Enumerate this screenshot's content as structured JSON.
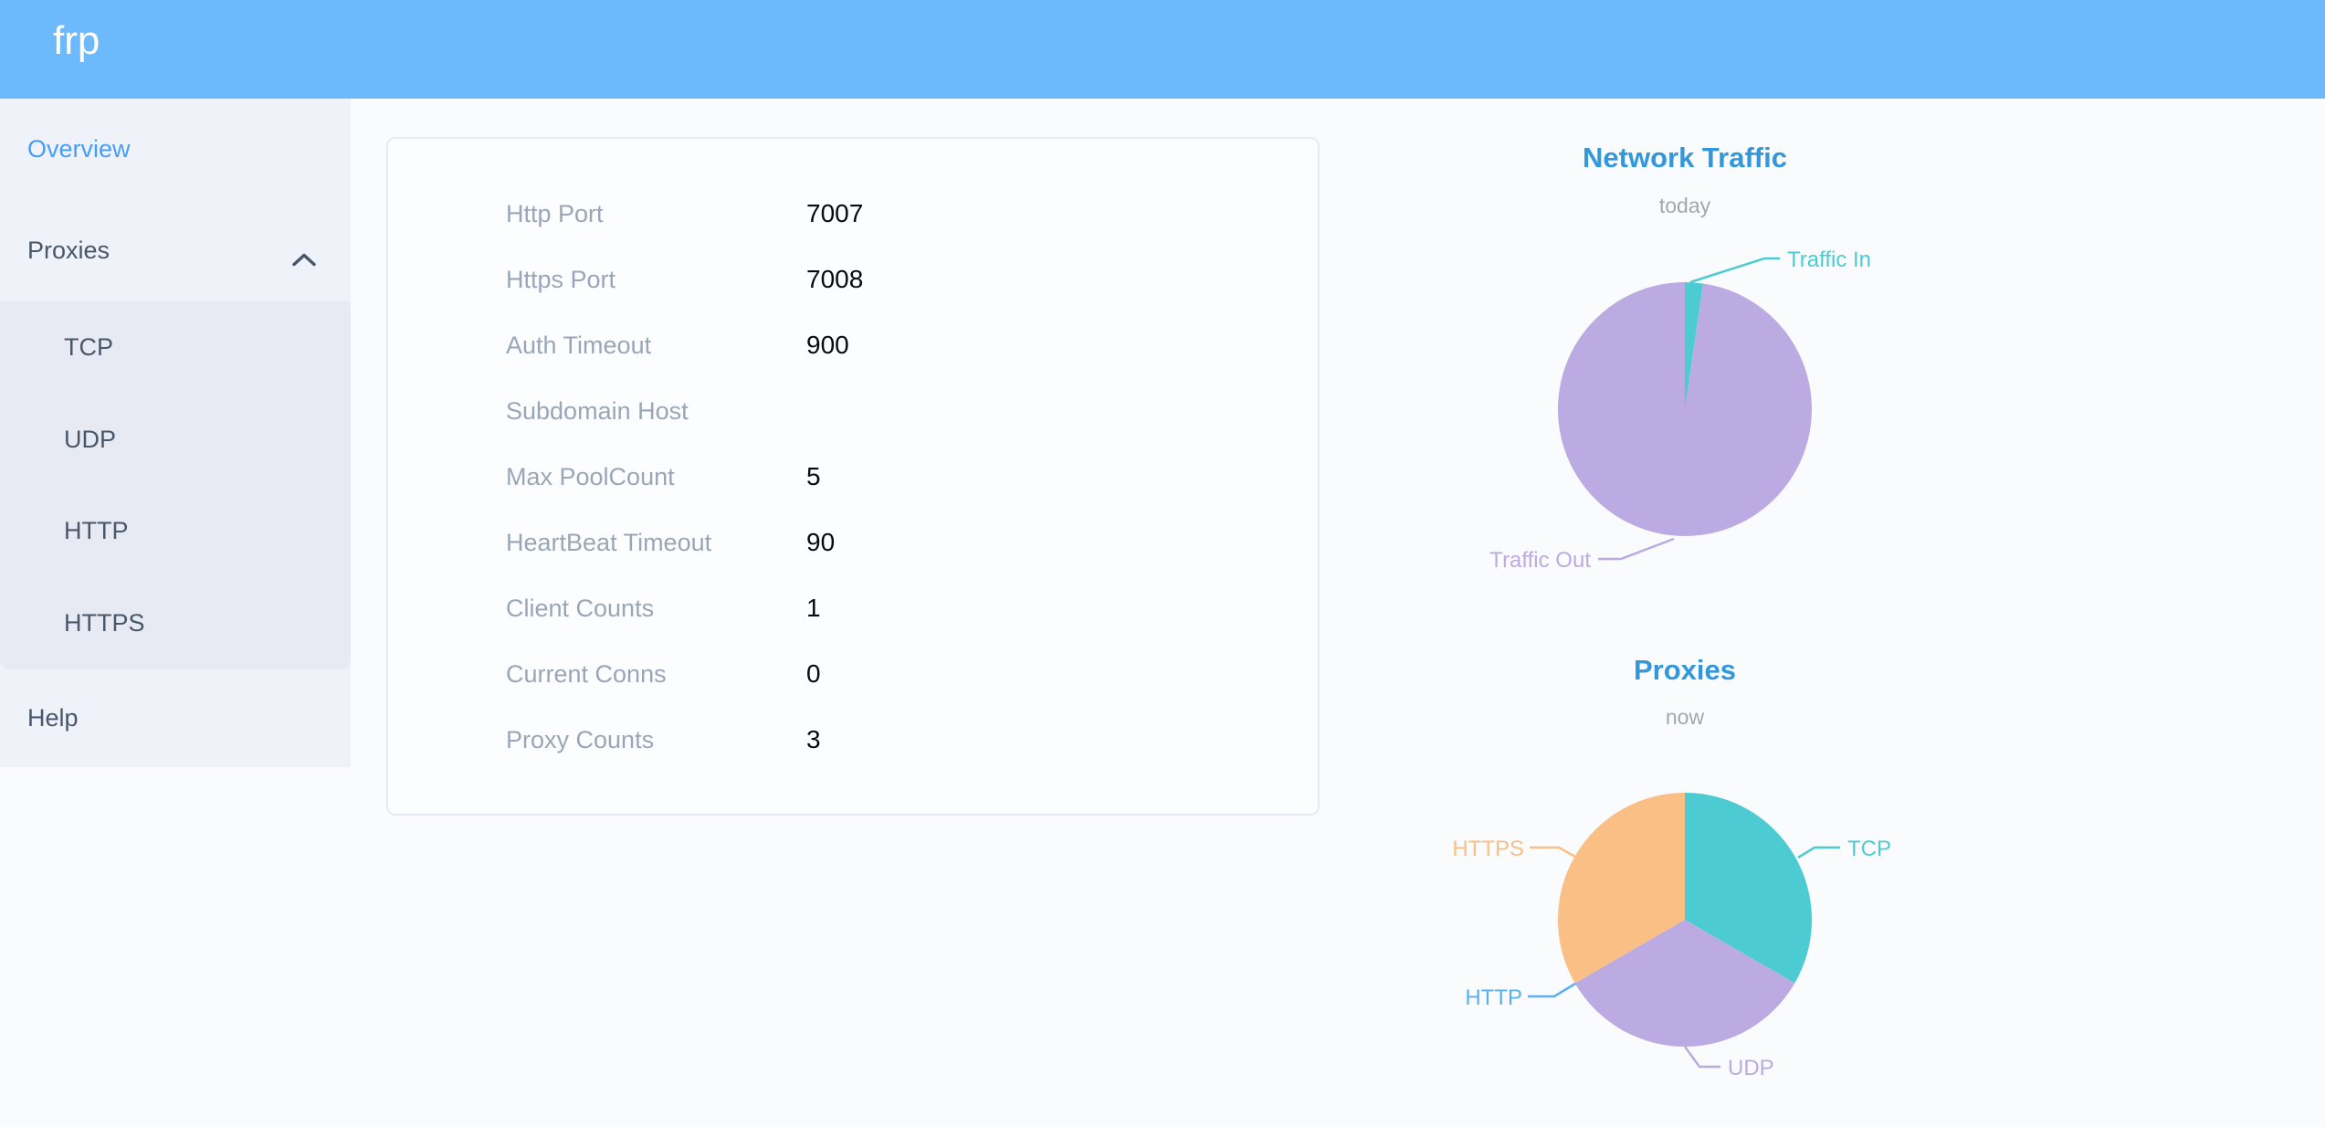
{
  "app": {
    "logo": "frp"
  },
  "sidebar": {
    "overview": "Overview",
    "proxies": "Proxies",
    "proxies_children": [
      "TCP",
      "UDP",
      "HTTP",
      "HTTPS"
    ],
    "help": "Help"
  },
  "overview": {
    "rows": [
      {
        "label": "Http Port",
        "value": "7007"
      },
      {
        "label": "Https Port",
        "value": "7008"
      },
      {
        "label": "Auth Timeout",
        "value": "900"
      },
      {
        "label": "Subdomain Host",
        "value": ""
      },
      {
        "label": "Max PoolCount",
        "value": "5"
      },
      {
        "label": "HeartBeat Timeout",
        "value": "90"
      },
      {
        "label": "Client Counts",
        "value": "1"
      },
      {
        "label": "Current Conns",
        "value": "0"
      },
      {
        "label": "Proxy Counts",
        "value": "3"
      }
    ]
  },
  "chart_data": [
    {
      "type": "pie",
      "title": "Network Traffic",
      "subtitle": "today",
      "labels": [
        "Traffic In",
        "Traffic Out"
      ],
      "values": [
        2.3,
        97.7
      ],
      "units": "% of total (estimated from slice angles)",
      "colors": [
        "#4cccd2",
        "#bcaae3"
      ],
      "legend_position": "none"
    },
    {
      "type": "pie",
      "title": "Proxies",
      "subtitle": "now",
      "labels": [
        "TCP",
        "UDP",
        "HTTP",
        "HTTPS"
      ],
      "values": [
        1,
        1,
        0,
        1
      ],
      "units": "proxy count",
      "colors": [
        "#4cccd2",
        "#bcaae3",
        "#5ab1ef",
        "#f9bf85"
      ],
      "legend_position": "none"
    }
  ],
  "colors": {
    "header": "#6cb9fb",
    "sidebar_bg": "#eff2f8",
    "submenu_bg": "#e7eaf3",
    "menu_text": "#48576a",
    "menu_active": "#459ff6",
    "chart_title": "#3398db",
    "label_gray": "#9aa6b8",
    "page_bg": "#fafbfd"
  }
}
